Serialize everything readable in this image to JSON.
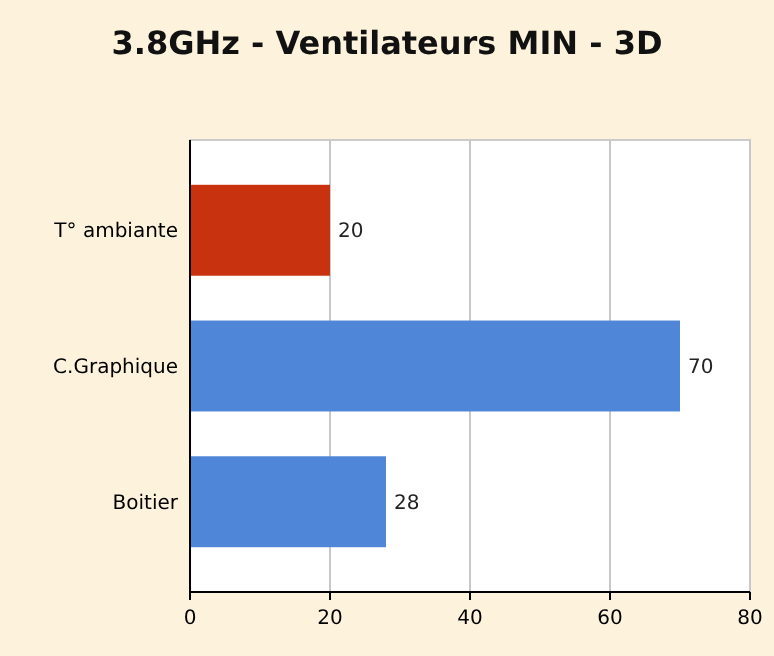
{
  "chart_data": {
    "type": "bar",
    "orientation": "horizontal",
    "title": "3.8GHz - Ventilateurs MIN - 3D",
    "categories": [
      "T° ambiante",
      "C.Graphique",
      "Boitier"
    ],
    "values": [
      20,
      70,
      28
    ],
    "colors": [
      "#c8320e",
      "#4f86d8",
      "#4f86d8"
    ],
    "xlim": [
      0,
      80
    ],
    "xticks": [
      0,
      20,
      40,
      60,
      80
    ],
    "grid": "x",
    "data_labels": true
  }
}
